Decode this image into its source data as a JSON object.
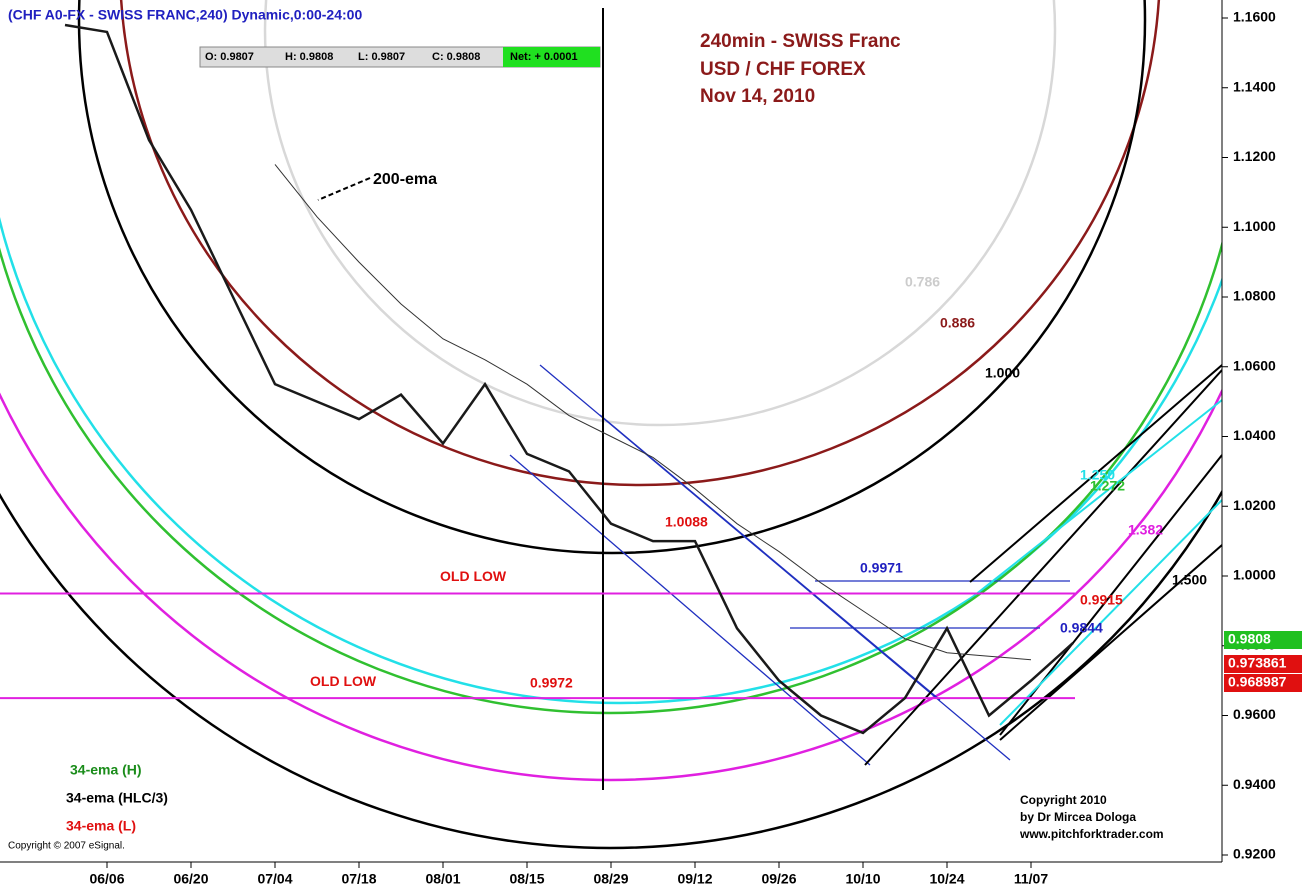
{
  "chart_data": {
    "type": "line",
    "header": "(CHF A0-FX - SWISS FRANC,240) Dynamic,0:00-24:00",
    "quote": [
      "O: 0.9807",
      "H: 0.9808",
      "L: 0.9807",
      "C: 0.9808",
      "Net: + 0.0001"
    ],
    "title": [
      "240min - SWISS Franc",
      "USD / CHF  FOREX",
      "Nov 14, 2010"
    ],
    "categories": [
      null,
      "06/06",
      null,
      "06/20",
      null,
      "07/04",
      null,
      "07/18",
      null,
      "08/01",
      null,
      "08/15",
      null,
      "08/29",
      null,
      "09/12",
      null,
      "09/26",
      null,
      "10/10",
      null,
      "10/24",
      null,
      "11/07",
      null
    ],
    "series": [
      {
        "name": "34-ema (HLC/3)",
        "color": "#1a1a1a",
        "values": [
          1.158,
          1.156,
          1.125,
          1.105,
          1.08,
          1.055,
          1.05,
          1.045,
          1.052,
          1.038,
          1.055,
          1.035,
          1.03,
          1.015,
          1.01,
          1.01,
          0.985,
          0.97,
          0.96,
          0.955,
          0.965,
          0.985,
          0.96,
          0.97,
          0.9808
        ]
      },
      {
        "name": "200-ema",
        "color": "#333333",
        "values": [
          null,
          null,
          null,
          null,
          null,
          1.118,
          1.103,
          1.09,
          1.078,
          1.068,
          1.062,
          1.055,
          1.046,
          1.04,
          1.034,
          1.025,
          1.015,
          1.007,
          0.998,
          0.99,
          0.982,
          0.978,
          0.977,
          0.976,
          null
        ]
      }
    ],
    "legend": [
      {
        "text": "34-ema (H)",
        "color": "#1a8c1a"
      },
      {
        "text": "34-ema (HLC/3)",
        "color": "#000000"
      },
      {
        "text": "34-ema (L)",
        "color": "#e01010"
      }
    ],
    "levels": [
      {
        "label": "OLD LOW",
        "value": 0.995,
        "color": "#e020e0"
      },
      {
        "label": "OLD LOW",
        "value": 0.965,
        "color": "#e020e0"
      }
    ],
    "annotations": [
      "0.9971",
      "0.9915",
      "0.9844",
      "0.9972",
      "0.786",
      "0.886",
      "1.000",
      "1.250",
      "1.272",
      "1.382",
      "1.500",
      "1.0088"
    ],
    "price_tags": [
      "0.9808",
      "0.973861",
      "0.968987"
    ],
    "ema_note": "200-ema",
    "copyright": [
      "Copyright 2010",
      "by Dr Mircea Dologa",
      "www.pitchforktrader.com"
    ],
    "esignal": "Copyright © 2007 eSignal.",
    "ylim": [
      0.92,
      1.16
    ],
    "yticks": [
      {
        "value": 0.92,
        "label": "0.9200"
      },
      {
        "value": 0.94,
        "label": "0.9400"
      },
      {
        "value": 0.96,
        "label": "0.9600"
      },
      {
        "value": 0.98,
        "label": "0.9800"
      },
      {
        "value": 1.0,
        "label": "1.0000"
      },
      {
        "value": 1.02,
        "label": "1.0200"
      },
      {
        "value": 1.04,
        "label": "1.0400"
      },
      {
        "value": 1.06,
        "label": "1.0600"
      },
      {
        "value": 1.08,
        "label": "1.0800"
      },
      {
        "value": 1.1,
        "label": "1.1000"
      },
      {
        "value": 1.12,
        "label": "1.1200"
      },
      {
        "value": 1.14,
        "label": "1.1400"
      },
      {
        "value": 1.16,
        "label": "1.1600"
      }
    ]
  }
}
